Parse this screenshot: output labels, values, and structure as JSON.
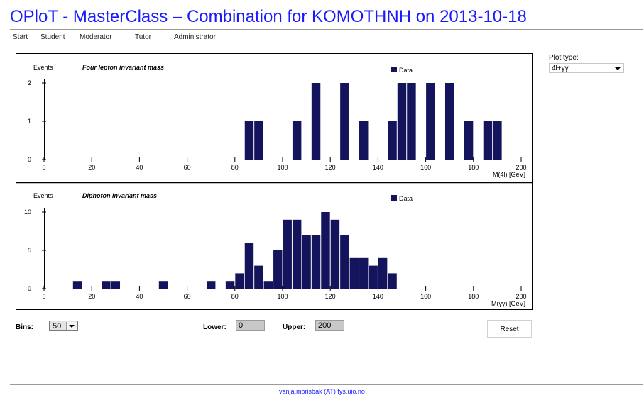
{
  "page": {
    "title": "OPloT - MasterClass – Combination for KOMOTHNH on 2013-10-18",
    "footer": "vanja.morisbak (AT) fys.uio.no"
  },
  "nav": [
    "Start",
    "Student",
    "Moderator",
    "Tutor",
    "Administrator"
  ],
  "plot_type": {
    "label": "Plot type:",
    "value": "4l+γγ"
  },
  "controls": {
    "bins_label": "Bins:",
    "bins_value": "50",
    "lower_label": "Lower:",
    "lower_value": "0",
    "upper_label": "Upper:",
    "upper_value": "200",
    "reset_label": "Reset"
  },
  "colors": {
    "bar": "#14145c",
    "title": "#1a1aff"
  },
  "chart_data": [
    {
      "type": "bar",
      "title": "Four lepton invariant mass",
      "ylabel": "Events",
      "xlabel": "M(4l) [GeV]",
      "legend": "Data",
      "legend_position": "top-right",
      "bin_width": 4,
      "xlim": [
        0,
        200
      ],
      "ylim": [
        0,
        2
      ],
      "xticks": [
        0,
        20,
        40,
        60,
        80,
        100,
        120,
        140,
        160,
        180,
        200
      ],
      "yticks": [
        0,
        1,
        2
      ],
      "bin_lows": [
        84,
        88,
        104,
        112,
        124,
        132,
        144,
        148,
        152,
        160,
        168,
        176,
        184,
        188
      ],
      "values": [
        1,
        1,
        1,
        2,
        2,
        1,
        1,
        2,
        2,
        2,
        2,
        1,
        1,
        1
      ]
    },
    {
      "type": "bar",
      "title": "Diphoton invariant mass",
      "ylabel": "Events",
      "xlabel": "M(γγ) [GeV]",
      "legend": "Data",
      "legend_position": "top-right",
      "bin_width": 4,
      "xlim": [
        0,
        200
      ],
      "ylim": [
        0,
        10
      ],
      "xticks": [
        0,
        20,
        40,
        60,
        80,
        100,
        120,
        140,
        160,
        180,
        200
      ],
      "yticks": [
        0,
        5,
        10
      ],
      "bin_lows": [
        12,
        24,
        28,
        48,
        68,
        76,
        80,
        84,
        88,
        92,
        96,
        100,
        104,
        108,
        112,
        116,
        120,
        124,
        128,
        132,
        136,
        140,
        144
      ],
      "values": [
        1,
        1,
        1,
        1,
        1,
        1,
        2,
        6,
        3,
        1,
        5,
        9,
        9,
        7,
        7,
        10,
        9,
        7,
        4,
        4,
        3,
        4,
        2
      ]
    }
  ]
}
